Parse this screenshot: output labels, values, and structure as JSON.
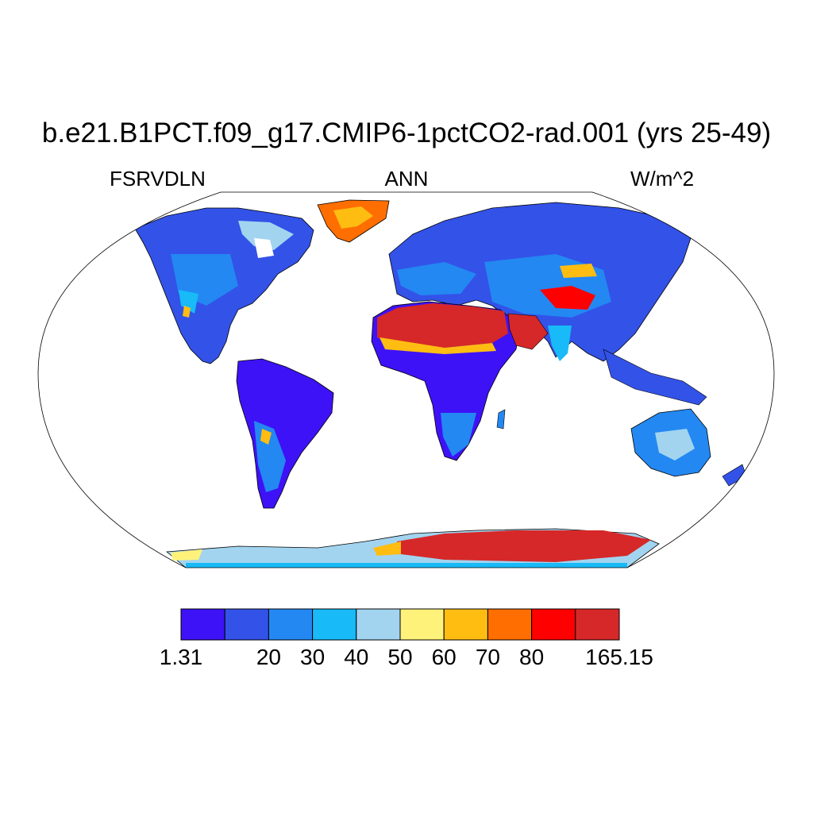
{
  "header": {
    "title": "b.e21.B1PCT.f09_g17.CMIP6-1pctCO2-rad.001 (yrs 25-49)",
    "variable": "FSRVDLN",
    "season": "ANN",
    "units": "W/m^2"
  },
  "colorbar": {
    "colors": [
      "#3e12f7",
      "#3352e8",
      "#2388f2",
      "#18baf7",
      "#a2d4f0",
      "#fff27a",
      "#ffbd12",
      "#ff6e00",
      "#ff0000",
      "#d62828"
    ],
    "labels": [
      {
        "text": "1.31",
        "edge": 0
      },
      {
        "text": "20",
        "edge": 2
      },
      {
        "text": "30",
        "edge": 3
      },
      {
        "text": "40",
        "edge": 4
      },
      {
        "text": "50",
        "edge": 5
      },
      {
        "text": "60",
        "edge": 6
      },
      {
        "text": "70",
        "edge": 7
      },
      {
        "text": "80",
        "edge": 8
      },
      {
        "text": "165.15",
        "edge": 10
      }
    ]
  }
}
